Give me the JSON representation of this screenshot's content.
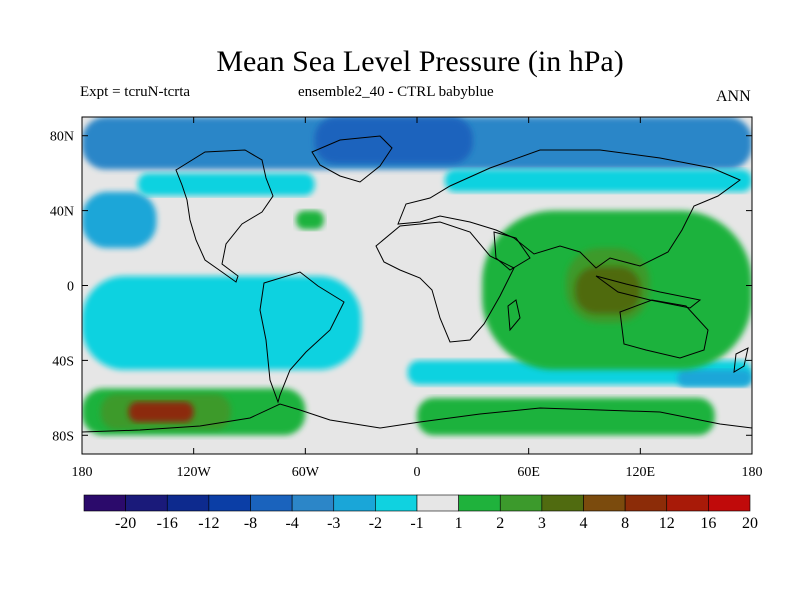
{
  "header": {
    "title": "Mean Sea Level Pressure (in hPa)",
    "left_label": "Expt = tcruN-tcrta",
    "center_label": "ensemble2_40 - CTRL babyblue",
    "right_label": "ANN"
  },
  "chart_data": {
    "type": "heatmap",
    "title": "Mean Sea Level Pressure (in hPa)",
    "variable": "Mean Sea Level Pressure difference",
    "units": "hPa",
    "projection": "cylindrical equidistant (global)",
    "x_range": [
      -180,
      180
    ],
    "y_range": [
      -90,
      90
    ],
    "x_ticks": [
      {
        "value": -180,
        "label": "180"
      },
      {
        "value": -120,
        "label": "120W"
      },
      {
        "value": -60,
        "label": "60W"
      },
      {
        "value": 0,
        "label": "0"
      },
      {
        "value": 60,
        "label": "60E"
      },
      {
        "value": 120,
        "label": "120E"
      },
      {
        "value": 180,
        "label": "180"
      }
    ],
    "y_ticks": [
      {
        "value": 80,
        "label": "80N"
      },
      {
        "value": 40,
        "label": "40N"
      },
      {
        "value": 0,
        "label": "0"
      },
      {
        "value": -40,
        "label": "40S"
      },
      {
        "value": -80,
        "label": "80S"
      }
    ],
    "contour_levels": [
      "-20",
      "-16",
      "-12",
      "-8",
      "-4",
      "-3",
      "-2",
      "-1",
      "1",
      "2",
      "3",
      "4",
      "8",
      "12",
      "16",
      "20"
    ],
    "colors": [
      "#2b0a6b",
      "#1a1a7a",
      "#0d2a8e",
      "#0b3ea6",
      "#1a63bd",
      "#2c86c8",
      "#1aa6d8",
      "#10d2e0",
      "#e6e6e6",
      "#1fb23c",
      "#3c9a2c",
      "#506b10",
      "#7b4b0d",
      "#8c2c08",
      "#a81a08",
      "#c00a0a"
    ],
    "background_color": "#e6e6e6",
    "regions": [
      {
        "name": "arctic-low",
        "category": "-4 to -3",
        "lon": [
          -180,
          180
        ],
        "lat": [
          62,
          90
        ]
      },
      {
        "name": "north-atlantic-low-core",
        "category": "-8 to -4",
        "lon": [
          -55,
          30
        ],
        "lat": [
          65,
          90
        ]
      },
      {
        "name": "north-pacific-low",
        "category": "-3 to -2",
        "lon": [
          -180,
          -140
        ],
        "lat": [
          20,
          50
        ]
      },
      {
        "name": "north-america-band",
        "category": "-2 to -1",
        "lon": [
          -150,
          -55
        ],
        "lat": [
          48,
          60
        ]
      },
      {
        "name": "europe-siberia-band",
        "category": "-2 to -1",
        "lon": [
          15,
          180
        ],
        "lat": [
          50,
          62
        ]
      },
      {
        "name": "tropical-pacific-low",
        "category": "-2 to -1",
        "lon": [
          -180,
          -30
        ],
        "lat": [
          -45,
          5
        ]
      },
      {
        "name": "southern-ocean-low-band",
        "category": "-2 to -1",
        "lon": [
          -5,
          180
        ],
        "lat": [
          -53,
          -40
        ]
      },
      {
        "name": "south-pacific-low-core",
        "category": "-3 to -2",
        "lon": [
          140,
          180
        ],
        "lat": [
          -54,
          -45
        ]
      },
      {
        "name": "atlantic-high-spot",
        "category": "1 to 2",
        "lon": [
          -65,
          -50
        ],
        "lat": [
          30,
          40
        ]
      },
      {
        "name": "indo-pacific-high",
        "category": "1 to 2",
        "lon": [
          35,
          180
        ],
        "lat": [
          -45,
          40
        ]
      },
      {
        "name": "indo-pacific-high-mid",
        "category": "2 to 3",
        "lon": [
          80,
          125
        ],
        "lat": [
          -20,
          20
        ]
      },
      {
        "name": "indo-pacific-high-core",
        "category": "3 to 4",
        "lon": [
          85,
          120
        ],
        "lat": [
          -15,
          10
        ]
      },
      {
        "name": "south-pacific-antarctic-high",
        "category": "1 to 2",
        "lon": [
          -180,
          -60
        ],
        "lat": [
          -80,
          -55
        ]
      },
      {
        "name": "south-pacific-antarctic-high-mid",
        "category": "2 to 3",
        "lon": [
          -170,
          -100
        ],
        "lat": [
          -77,
          -58
        ]
      },
      {
        "name": "south-pacific-antarctic-high-core",
        "category": "8 to 12",
        "lon": [
          -155,
          -120
        ],
        "lat": [
          -73,
          -62
        ]
      },
      {
        "name": "antarctic-coast-high",
        "category": "1 to 2",
        "lon": [
          0,
          160
        ],
        "lat": [
          -80,
          -60
        ]
      }
    ]
  }
}
